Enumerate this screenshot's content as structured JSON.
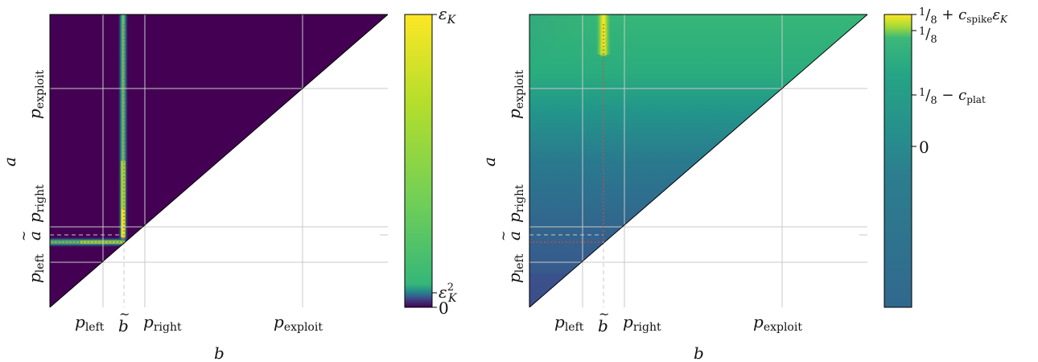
{
  "chart_data": [
    {
      "type": "heatmap",
      "xlabel": "b",
      "ylabel": "a",
      "x_ticks": [
        "p_left",
        "b̃",
        "p_right",
        "p_exploit"
      ],
      "y_ticks": [
        "p_left",
        "ã",
        "p_right",
        "p_exploit"
      ],
      "domain": "upper triangle a > b",
      "features": "narrow bright band along b = b̃ (vertical) and a = ã (horizontal), peaking near the diagonal; rest of triangle ≈ 0",
      "colorbar": {
        "colormap": "viridis",
        "ticks": [
          {
            "label_main": "ε",
            "label_sub": "K",
            "label_sup": "",
            "position": 1.0
          },
          {
            "label_main": "ε",
            "label_sub": "K",
            "label_sup": "2",
            "position": 0.05
          },
          {
            "label_main": "0",
            "label_sub": "",
            "label_sup": "",
            "position": 0.0
          }
        ]
      }
    },
    {
      "type": "heatmap",
      "xlabel": "b",
      "ylabel": "a",
      "x_ticks": [
        "p_left",
        "b̃",
        "p_right",
        "p_exploit"
      ],
      "y_ticks": [
        "p_left",
        "ã",
        "p_right",
        "p_exploit"
      ],
      "domain": "upper triangle a > b",
      "features": "green plateau for large a, darker teal/blue for small a, bright spike at top near b = b̃; red dotted guides along b = b̃ and a = ã",
      "colorbar": {
        "colormap": "viridis",
        "ticks": [
          {
            "label": "1/8 + c_spike ε_K",
            "position": 1.0
          },
          {
            "label": "1/8",
            "position": 0.93
          },
          {
            "label": "1/8 − c_plat",
            "position": 0.72
          },
          {
            "label": "0",
            "position": 0.55
          }
        ]
      }
    }
  ]
}
